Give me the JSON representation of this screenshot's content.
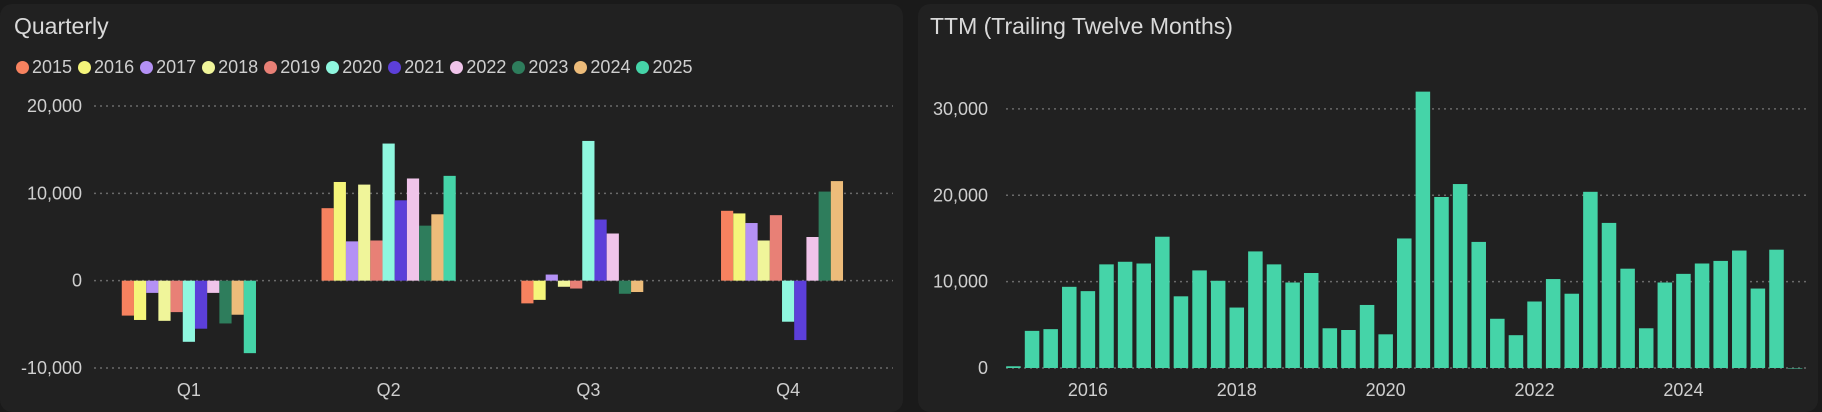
{
  "chart_data": [
    {
      "type": "bar",
      "title": "Quarterly",
      "categories": [
        "Q1",
        "Q2",
        "Q3",
        "Q4"
      ],
      "y_ticks": [
        -10000,
        0,
        10000,
        20000
      ],
      "y_tick_labels": [
        "-10,000",
        "0",
        "10,000",
        "20,000"
      ],
      "ylim": [
        -10000,
        20000
      ],
      "grid": true,
      "legend_position": "top-left",
      "series": [
        {
          "name": "2015",
          "color": "#f7825f",
          "values": [
            -4000,
            8300,
            -2600,
            8000
          ]
        },
        {
          "name": "2016",
          "color": "#f5f57a",
          "values": [
            -4500,
            11300,
            -2200,
            7700
          ]
        },
        {
          "name": "2017",
          "color": "#b491f5",
          "values": [
            -1400,
            4500,
            700,
            6600
          ]
        },
        {
          "name": "2018",
          "color": "#f0f59a",
          "values": [
            -4600,
            11000,
            -700,
            4600
          ]
        },
        {
          "name": "2019",
          "color": "#e88076",
          "values": [
            -3600,
            4600,
            -900,
            7500
          ]
        },
        {
          "name": "2020",
          "color": "#8ff7df",
          "values": [
            -7000,
            15700,
            16000,
            -4700
          ]
        },
        {
          "name": "2021",
          "color": "#5c3fd9",
          "values": [
            -5500,
            9200,
            7000,
            -6800
          ]
        },
        {
          "name": "2022",
          "color": "#f0c4ea",
          "values": [
            -1400,
            11700,
            5400,
            5000
          ]
        },
        {
          "name": "2023",
          "color": "#2e7d5c",
          "values": [
            -4900,
            6300,
            -1500,
            10200
          ]
        },
        {
          "name": "2024",
          "color": "#edbc7a",
          "values": [
            -3900,
            7600,
            -1300,
            11400
          ]
        },
        {
          "name": "2025",
          "color": "#45d4a8",
          "values": [
            -8300,
            12000,
            null,
            null
          ]
        }
      ]
    },
    {
      "type": "bar",
      "title": "TTM (Trailing Twelve Months)",
      "x_ticks": [
        2016,
        2018,
        2020,
        2022,
        2024
      ],
      "x_tick_labels": [
        "2016",
        "2018",
        "2020",
        "2022",
        "2024"
      ],
      "y_ticks": [
        0,
        10000,
        20000,
        30000
      ],
      "y_tick_labels": [
        "0",
        "10,000",
        "20,000",
        "30,000"
      ],
      "ylim": [
        0,
        33000
      ],
      "xlim": [
        2014.9,
        2025.7
      ],
      "grid": true,
      "color": "#45d4a8",
      "x": [
        2015.0,
        2015.25,
        2015.5,
        2015.75,
        2016.0,
        2016.25,
        2016.5,
        2016.75,
        2017.0,
        2017.25,
        2017.5,
        2017.75,
        2018.0,
        2018.25,
        2018.5,
        2018.75,
        2019.0,
        2019.25,
        2019.5,
        2019.75,
        2020.0,
        2020.25,
        2020.5,
        2020.75,
        2021.0,
        2021.25,
        2021.5,
        2021.75,
        2022.0,
        2022.25,
        2022.5,
        2022.75,
        2023.0,
        2023.25,
        2023.5,
        2023.75,
        2024.0,
        2024.25,
        2024.5,
        2024.75,
        2025.0,
        2025.25,
        2025.5
      ],
      "values": [
        200,
        4300,
        4500,
        9400,
        8900,
        12000,
        12300,
        12100,
        15200,
        8300,
        11300,
        10100,
        7000,
        13500,
        12000,
        9900,
        11000,
        4600,
        4400,
        7300,
        3900,
        15000,
        32000,
        19800,
        21300,
        14600,
        5700,
        3800,
        7700,
        10300,
        8600,
        20400,
        16800,
        11500,
        4600,
        9900,
        10900,
        12100,
        12400,
        13600,
        9200,
        13700,
        0
      ]
    }
  ]
}
